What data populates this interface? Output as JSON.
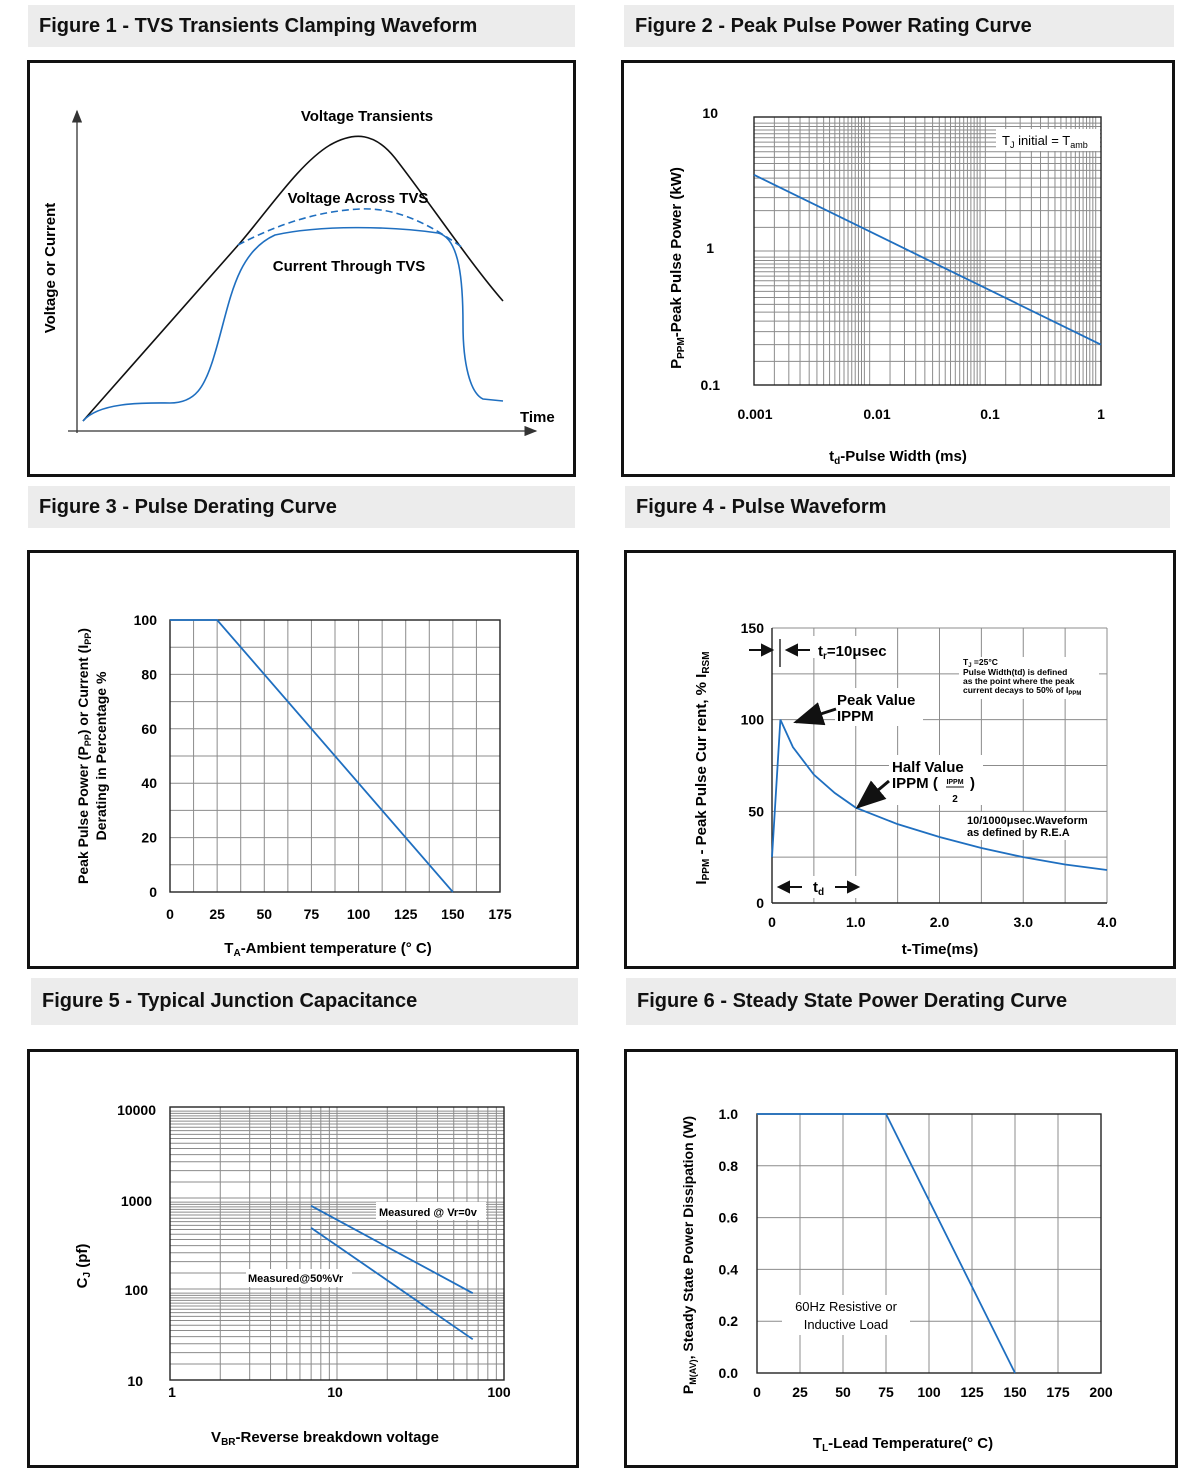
{
  "colors": {
    "curve": "#1f6fc0",
    "grid": "#8c8c8c",
    "frame": "#111111",
    "title_bg": "#ececec"
  },
  "titles": {
    "fig1": "Figure 1 - TVS Transients Clamping Waveform",
    "fig2": "Figure 2 - Peak Pulse Power Rating Curve",
    "fig3": "Figure 3 - Pulse Derating Curve",
    "fig4": "Figure 4 - Pulse Waveform",
    "fig5": "Figure 5 - Typical Junction Capacitance",
    "fig6": "Figure 6 - Steady State Power Derating Curve"
  },
  "fig1": {
    "ylabel": "Voltage or Current",
    "xlabel": "Time",
    "label_voltage": "Voltage Transients",
    "label_across": "Voltage Across TVS",
    "label_current": "Current Through TVS"
  },
  "fig2": {
    "ylabel_main": "P",
    "ylabel_sub": "PPM",
    "ylabel_rest": "-Peak Pulse Power (kW)",
    "xlabel_main": "t",
    "xlabel_sub": "d",
    "xlabel_rest": "-Pulse Width (ms)",
    "note_main": "T",
    "note_sub1": "J",
    "note_mid": " initial = T",
    "note_sub2": "amb",
    "yticks": [
      "10",
      "1",
      "0.1"
    ],
    "xticks": [
      "0.001",
      "0.01",
      "0.1",
      "1"
    ]
  },
  "fig3": {
    "ylabel_line1": "Peak Pulse Power (P",
    "ylabel_line1_sub1": "PP",
    "ylabel_line1_mid": ") or Current (I",
    "ylabel_line1_sub2": "PP",
    "ylabel_line1_end": ")",
    "ylabel_line2": "Derating in Percentage %",
    "xlabel_main": "T",
    "xlabel_sub": "A",
    "xlabel_rest": "-Ambient temperature (° C)",
    "yticks": [
      "100",
      "80",
      "60",
      "40",
      "20",
      "0"
    ],
    "xticks": [
      "0",
      "25",
      "50",
      "75",
      "100",
      "125",
      "150",
      "175"
    ]
  },
  "fig4": {
    "ylabel_main": "I",
    "ylabel_sub1": "PPM",
    "ylabel_mid": " - Peak Pulse Cur rent, % I",
    "ylabel_sub2": "RSM",
    "xlabel": "t-Time(ms)",
    "yticks": [
      "150",
      "100",
      "50",
      "0"
    ],
    "xticks": [
      "0",
      "1.0",
      "2.0",
      "3.0",
      "4.0"
    ],
    "tr_main": "t",
    "tr_sub": "r",
    "tr_rest": "=10μsec",
    "peak_line1": "Peak Value",
    "peak_line2": "IPPM",
    "half_line1": "Half Value",
    "half_line2": "IPPM (",
    "half_frac_num": "IPPM",
    "half_frac_den": "2",
    "half_close": ")",
    "note_line1": "T",
    "note_line1_sub": "J",
    "note_line1_rest": " =25°C",
    "note_line2": "Pulse Width(td) is defined",
    "note_line3": "as the point where the peak",
    "note_line4": "current decays to 50% of I",
    "note_line4_sub": "PPM",
    "wave_line1": "10/1000μsec.Waveform",
    "wave_line2": "as defined by R.E.A",
    "td_main": "t",
    "td_sub": "d"
  },
  "fig5": {
    "ylabel_main": "C",
    "ylabel_sub": "J",
    "ylabel_rest": " (pf)",
    "xlabel_main": "V",
    "xlabel_sub": "BR",
    "xlabel_rest": "-Reverse breakdown voltage",
    "yticks": [
      "10000",
      "1000",
      "100",
      "10"
    ],
    "xticks": [
      "1",
      "10",
      "100"
    ],
    "label_vr0": "Measured @ Vr=0v",
    "label_50": "Measured@50%Vr"
  },
  "fig6": {
    "ylabel_main": "P",
    "ylabel_sub": "M(AV)",
    "ylabel_rest": ", Steady State Power Dissipation (W)",
    "xlabel_main": "T",
    "xlabel_sub": "L",
    "xlabel_rest": "-Lead Temperature(° C)",
    "yticks": [
      "1.0",
      "0.8",
      "0.6",
      "0.4",
      "0.2",
      "0.0"
    ],
    "xticks": [
      "0",
      "25",
      "50",
      "75",
      "100",
      "125",
      "150",
      "175",
      "200"
    ],
    "note_line1": "60Hz Resistive or",
    "note_line2": "Inductive Load"
  },
  "chart_data": [
    {
      "type": "line",
      "title": "Figure 1 - TVS Transients Clamping Waveform",
      "xlabel": "Time",
      "ylabel": "Voltage or Current",
      "series": [
        {
          "name": "Voltage Transients"
        },
        {
          "name": "Voltage Across TVS"
        },
        {
          "name": "Current Through TVS"
        }
      ]
    },
    {
      "type": "line",
      "title": "Figure 2 - Peak Pulse Power Rating Curve",
      "xlabel": "td-Pulse Width (ms)",
      "ylabel": "PPPM-Peak Pulse Power (kW)",
      "xscale": "log",
      "yscale": "log",
      "xlim": [
        0.001,
        1
      ],
      "ylim": [
        0.1,
        10
      ],
      "grid": true,
      "x": [
        0.001,
        1
      ],
      "y": [
        3.7,
        0.2
      ]
    },
    {
      "type": "line",
      "title": "Figure 3 - Pulse Derating Curve",
      "xlabel": "TA-Ambient temperature (° C)",
      "ylabel": "Peak Pulse Power (PPP) or Current (IPP) Derating in Percentage %",
      "xlim": [
        0,
        175
      ],
      "ylim": [
        0,
        100
      ],
      "grid": true,
      "x": [
        0,
        25,
        150
      ],
      "y": [
        100,
        100,
        0
      ]
    },
    {
      "type": "line",
      "title": "Figure 4 - Pulse Waveform",
      "xlabel": "t-Time(ms)",
      "ylabel": "IPPM - Peak Pulse Cur rent, % IRSM",
      "xlim": [
        0,
        4.0
      ],
      "ylim": [
        0,
        150
      ],
      "grid": true,
      "x": [
        0,
        0.1,
        0.25,
        0.5,
        0.75,
        1.0,
        1.5,
        2.0,
        2.5,
        3.0,
        3.5,
        4.0
      ],
      "y": [
        25,
        100,
        85,
        70,
        60,
        52,
        43,
        36,
        30,
        25,
        21,
        18
      ]
    },
    {
      "type": "line",
      "title": "Figure 5 - Typical Junction Capacitance",
      "xlabel": "VBR-Reverse breakdown voltage",
      "ylabel": "CJ (pf)",
      "xscale": "log",
      "yscale": "log",
      "xlim": [
        1,
        100
      ],
      "ylim": [
        10,
        10000
      ],
      "grid": true,
      "series": [
        {
          "name": "Measured @ Vr=0v",
          "x": [
            7,
            65
          ],
          "y": [
            820,
            90
          ]
        },
        {
          "name": "Measured@50%Vr",
          "x": [
            7,
            65
          ],
          "y": [
            470,
            28
          ]
        }
      ]
    },
    {
      "type": "line",
      "title": "Figure 6 - Steady State Power Derating Curve",
      "xlabel": "TL-Lead Temperature(° C)",
      "ylabel": "PM(AV), Steady State Power Dissipation (W)",
      "xlim": [
        0,
        200
      ],
      "ylim": [
        0,
        1.0
      ],
      "grid": true,
      "x": [
        0,
        75,
        150
      ],
      "y": [
        1.0,
        1.0,
        0.0
      ]
    }
  ]
}
